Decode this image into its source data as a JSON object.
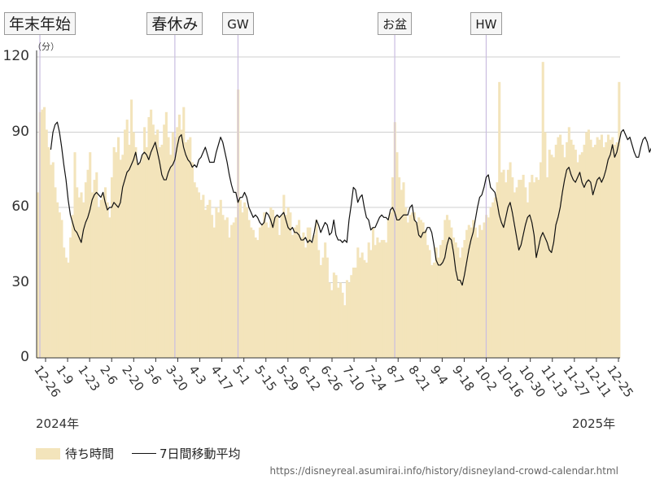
{
  "chart_data": {
    "type": "bar",
    "ylim": [
      0,
      120
    ],
    "y_ticks": [
      0,
      30,
      60,
      90,
      120
    ],
    "y_unit": "（分）",
    "x_tick_labels": [
      "12-26",
      "1-9",
      "1-23",
      "2-6",
      "2-20",
      "3-6",
      "3-20",
      "4-3",
      "4-17",
      "5-1",
      "5-15",
      "5-29",
      "6-12",
      "6-26",
      "7-10",
      "7-24",
      "8-7",
      "8-21",
      "9-4",
      "9-18",
      "10-2",
      "10-16",
      "10-30",
      "11-13",
      "11-27",
      "12-11",
      "12-25"
    ],
    "year_labels": [
      "2024年",
      "2025年"
    ],
    "grid": true,
    "legend_position": "bottom-left",
    "events": [
      {
        "label": "年末年始",
        "date_index": 1
      },
      {
        "label": "春休み",
        "date_index": 63
      },
      {
        "label": "GW",
        "date_index": 92
      },
      {
        "label": "お盆",
        "date_index": 164
      },
      {
        "label": "HW",
        "date_index": 206
      }
    ],
    "series": [
      {
        "name": "待ち時間",
        "type": "bar",
        "color": "#f3e4bb",
        "values": [
          66,
          98,
          99,
          100,
          91,
          84,
          77,
          78,
          68,
          62,
          58,
          55,
          44,
          40,
          38,
          48,
          57,
          82,
          68,
          64,
          66,
          62,
          70,
          75,
          82,
          66,
          71,
          74,
          60,
          63,
          65,
          68,
          62,
          56,
          72,
          84,
          82,
          88,
          79,
          81,
          91,
          95,
          85,
          103,
          90,
          84,
          77,
          78,
          81,
          92,
          84,
          96,
          99,
          93,
          89,
          91,
          84,
          85,
          93,
          98,
          88,
          81,
          90,
          88,
          92,
          97,
          91,
          100,
          86,
          87,
          88,
          78,
          70,
          68,
          66,
          63,
          65,
          59,
          61,
          63,
          57,
          52,
          60,
          58,
          63,
          57,
          55,
          56,
          48,
          53,
          54,
          56,
          107,
          63,
          58,
          62,
          60,
          55,
          52,
          51,
          48,
          47,
          52,
          53,
          58,
          54,
          52,
          60,
          59,
          56,
          57,
          49,
          57,
          65,
          57,
          60,
          58,
          49,
          52,
          53,
          55,
          48,
          50,
          44,
          52,
          52,
          46,
          49,
          55,
          43,
          37,
          40,
          46,
          40,
          30,
          27,
          34,
          33,
          28,
          30,
          26,
          21,
          31,
          30,
          33,
          36,
          36,
          44,
          40,
          42,
          39,
          38,
          46,
          43,
          52,
          45,
          48,
          46,
          47,
          47,
          46,
          55,
          58,
          72,
          94,
          82,
          72,
          67,
          70,
          60,
          54,
          57,
          58,
          58,
          54,
          56,
          55,
          54,
          51,
          45,
          43,
          37,
          38,
          44,
          40,
          45,
          47,
          55,
          57,
          55,
          52,
          48,
          46,
          44,
          40,
          44,
          47,
          51,
          53,
          52,
          55,
          52,
          48,
          53,
          51,
          54,
          57,
          56,
          60,
          62,
          64,
          70,
          110,
          74,
          75,
          70,
          75,
          78,
          72,
          66,
          68,
          71,
          71,
          73,
          68,
          62,
          70,
          73,
          70,
          72,
          71,
          78,
          118,
          90,
          72,
          83,
          81,
          80,
          85,
          88,
          89,
          85,
          80,
          86,
          92,
          87,
          85,
          83,
          78,
          81,
          82,
          85,
          90,
          91,
          87,
          84,
          85,
          88,
          87,
          89,
          84,
          86,
          89,
          87,
          88,
          85,
          86,
          110
        ]
      },
      {
        "name": "7日間移動平均",
        "type": "line",
        "color": "#111111",
        "values": [
          null,
          null,
          null,
          null,
          null,
          null,
          83,
          90,
          93,
          94,
          90,
          84,
          77,
          71,
          63,
          57,
          54,
          51,
          50,
          48,
          46,
          51,
          54,
          56,
          59,
          63,
          65,
          66,
          65,
          64,
          66,
          62,
          59,
          60,
          60,
          62,
          61,
          60,
          62,
          68,
          71,
          74,
          75,
          77,
          79,
          82,
          77,
          78,
          81,
          82,
          81,
          79,
          82,
          84,
          86,
          82,
          78,
          73,
          71,
          71,
          74,
          76,
          77,
          79,
          84,
          88,
          89,
          84,
          81,
          79,
          78,
          76,
          77,
          76,
          79,
          80,
          82,
          84,
          81,
          78,
          78,
          78,
          82,
          85,
          88,
          86,
          82,
          78,
          73,
          69,
          66,
          66,
          62,
          64,
          64,
          66,
          64,
          60,
          58,
          56,
          57,
          56,
          54,
          53,
          54,
          58,
          57,
          55,
          52,
          56,
          57,
          56,
          57,
          58,
          55,
          52,
          51,
          52,
          50,
          50,
          49,
          47,
          47,
          48,
          46,
          47,
          46,
          50,
          55,
          53,
          50,
          52,
          54,
          53,
          49,
          50,
          55,
          49,
          47,
          47,
          46,
          47,
          46,
          55,
          61,
          68,
          67,
          62,
          64,
          65,
          60,
          56,
          55,
          51,
          52,
          52,
          54,
          56,
          57,
          56,
          56,
          55,
          59,
          60,
          58,
          55,
          55,
          56,
          57,
          57,
          57,
          60,
          61,
          55,
          54,
          49,
          48,
          50,
          50,
          52,
          52,
          50,
          45,
          39,
          37,
          37,
          38,
          40,
          45,
          48,
          47,
          42,
          35,
          31,
          31,
          29,
          33,
          38,
          43,
          47,
          50,
          55,
          60,
          64,
          65,
          68,
          72,
          73,
          68,
          67,
          66,
          62,
          57,
          54,
          52,
          56,
          60,
          62,
          58,
          53,
          48,
          43,
          45,
          49,
          53,
          56,
          57,
          54,
          49,
          40,
          44,
          48,
          50,
          48,
          46,
          43,
          42,
          46,
          53,
          56,
          60,
          66,
          71,
          75,
          76,
          73,
          71,
          70,
          72,
          74,
          70,
          68,
          70,
          71,
          70,
          65,
          68,
          71,
          72,
          70,
          72,
          75,
          79,
          81,
          85,
          80,
          82,
          86,
          90,
          91,
          89,
          87,
          88,
          85,
          82,
          80,
          80,
          84,
          87,
          88,
          86,
          82,
          84,
          86,
          87,
          88,
          88,
          86,
          84,
          86,
          88
        ]
      }
    ]
  },
  "unit_label": "（分）",
  "legend": {
    "bar_label": "待ち時間",
    "line_label": "7日間移動平均"
  },
  "source": "https://disneyreal.asumirai.info/history/disneyland-crowd-calendar.html",
  "colors": {
    "bar": "#f3e4bb",
    "line": "#111111",
    "event_line": "#c9bde0",
    "grid": "#cfcfcf"
  }
}
